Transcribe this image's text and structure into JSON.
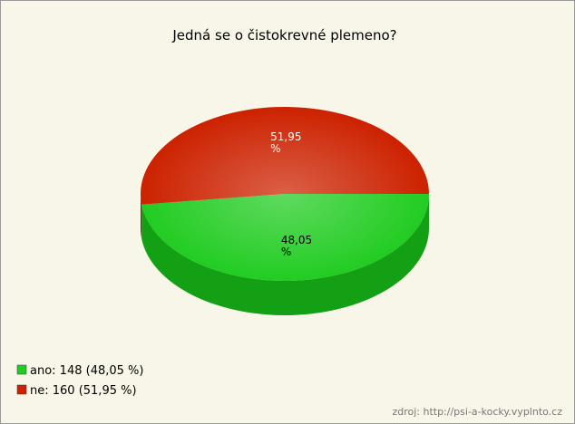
{
  "chart_data": {
    "type": "pie",
    "title": "Jedná se o čistokrevné plemeno?",
    "categories": [
      "ano",
      "ne"
    ],
    "values": [
      48.05,
      51.95
    ],
    "value_labels": [
      "48,05 %",
      "51,95 %"
    ],
    "colors": [
      "#22cc22",
      "#cc2200"
    ],
    "side_colors": [
      "#14a014",
      "#9e1800"
    ],
    "legend_labels": [
      "ano: 148 (48,05 %)",
      "ne: 160 (51,95 %)"
    ],
    "source": "zdroj: http://psi-a-kocky.vyplnto.cz"
  }
}
